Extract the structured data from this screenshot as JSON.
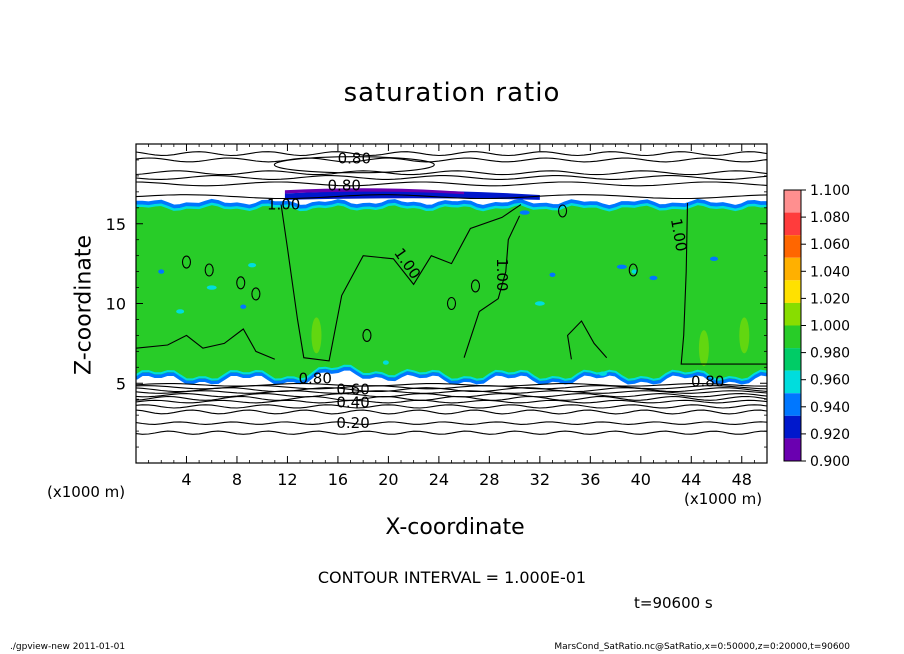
{
  "chart_data": {
    "type": "heatmap",
    "title": "saturation ratio",
    "xlabel": "X-coordinate",
    "ylabel": "Z-coordinate",
    "x_unit_label": "(x1000 m)",
    "xlim": [
      0,
      50
    ],
    "ylim": [
      0,
      20
    ],
    "x_ticks": [
      4,
      8,
      12,
      16,
      20,
      24,
      28,
      32,
      36,
      40,
      44,
      48
    ],
    "y_ticks": [
      5,
      10,
      15
    ],
    "colorbar": {
      "levels": [
        "1.100",
        "1.080",
        "1.060",
        "1.040",
        "1.020",
        "1.000",
        "0.980",
        "0.960",
        "0.940",
        "0.920",
        "0.900"
      ],
      "colors": [
        "#ff8f8f",
        "#ff3c3c",
        "#ff6600",
        "#ffb000",
        "#ffe100",
        "#88dd00",
        "#28cc28",
        "#00cc66",
        "#00dddd",
        "#0077ff",
        "#0018cc",
        "#6a00b0"
      ]
    },
    "contour_labels": [
      {
        "text": "0.80",
        "x": 17.3,
        "z": 19.1
      },
      {
        "text": "0.80",
        "x": 16.5,
        "z": 17.4
      },
      {
        "text": "1.00",
        "x": 11.7,
        "z": 16.2
      },
      {
        "text": "1.00",
        "x": 21.5,
        "z": 12.5
      },
      {
        "text": "1.00",
        "x": 29.0,
        "z": 11.8
      },
      {
        "text": "1.00",
        "x": 43.0,
        "z": 14.3
      },
      {
        "text": "0.80",
        "x": 14.2,
        "z": 5.3
      },
      {
        "text": "0.60",
        "x": 17.2,
        "z": 4.6
      },
      {
        "text": "0.40",
        "x": 17.2,
        "z": 3.8
      },
      {
        "text": "0.20",
        "x": 17.2,
        "z": 2.5
      },
      {
        "text": "0.80",
        "x": 45.3,
        "z": 5.1
      }
    ],
    "contour_interval": "CONTOUR INTERVAL = 1.000E-01"
  },
  "timestamp": "t=90600 s",
  "footer": {
    "left": "./gpview-new  2011-01-01",
    "right": "MarsCond_SatRatio.nc@SatRatio,x=0:50000,z=0:20000,t=90600"
  }
}
